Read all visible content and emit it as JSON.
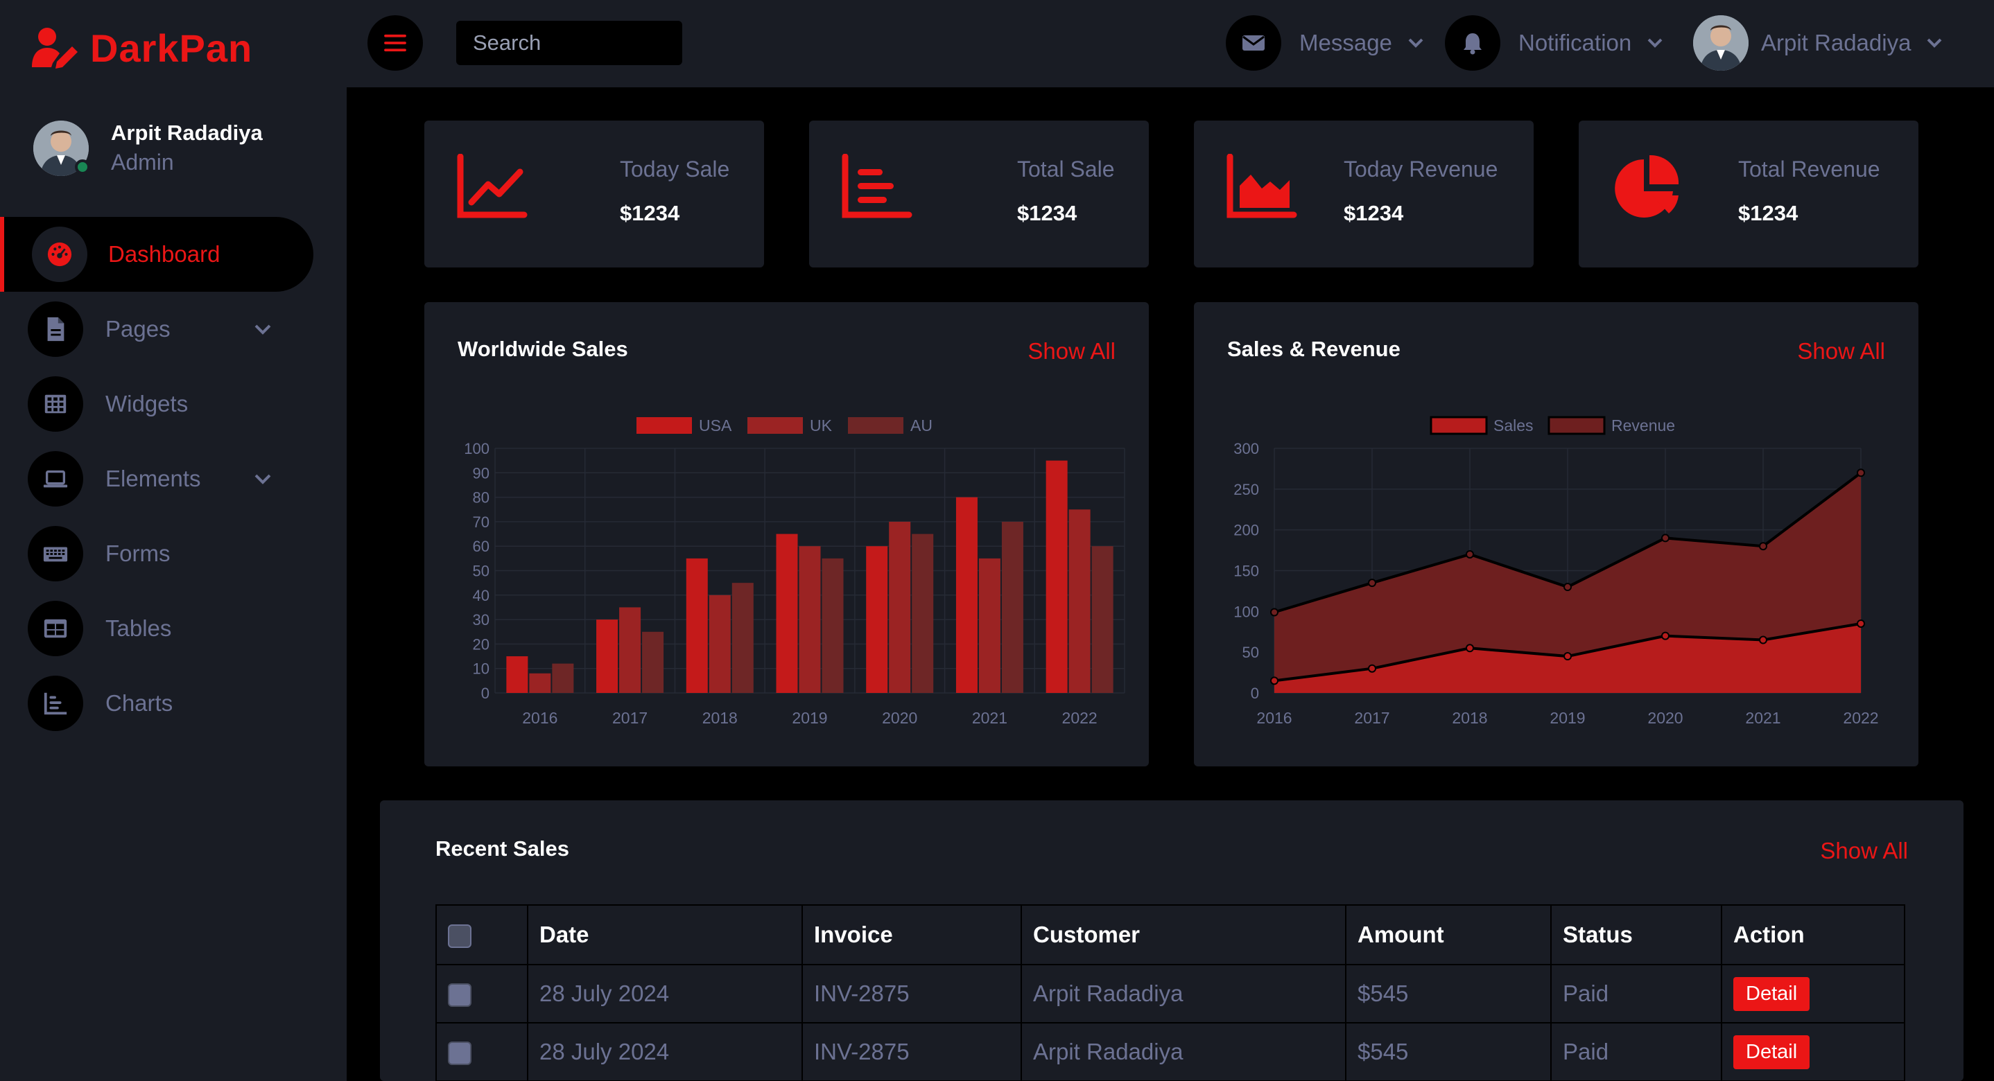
{
  "brand": {
    "name": "DarkPan",
    "accent": "#EB1616"
  },
  "profile": {
    "name": "Arpit Radadiya",
    "role": "Admin"
  },
  "sidebar": {
    "items": [
      {
        "label": "Dashboard",
        "icon": "tachometer-icon",
        "active": true
      },
      {
        "label": "Pages",
        "icon": "file-icon",
        "has_submenu": true
      },
      {
        "label": "Widgets",
        "icon": "grid-icon"
      },
      {
        "label": "Elements",
        "icon": "laptop-icon",
        "has_submenu": true
      },
      {
        "label": "Forms",
        "icon": "keyboard-icon"
      },
      {
        "label": "Tables",
        "icon": "table-icon"
      },
      {
        "label": "Charts",
        "icon": "chart-bar-icon"
      }
    ]
  },
  "topbar": {
    "search_placeholder": "Search",
    "message_label": "Message",
    "notification_label": "Notification",
    "user_name": "Arpit Radadiya"
  },
  "stats": [
    {
      "title": "Today Sale",
      "value": "$1234",
      "icon": "chart-line-icon"
    },
    {
      "title": "Total Sale",
      "value": "$1234",
      "icon": "chart-bar-icon"
    },
    {
      "title": "Today Revenue",
      "value": "$1234",
      "icon": "chart-area-icon"
    },
    {
      "title": "Total Revenue",
      "value": "$1234",
      "icon": "chart-pie-icon"
    }
  ],
  "worldwide": {
    "title": "Worldwide Sales",
    "show_all": "Show All"
  },
  "salesrev": {
    "title": "Sales & Revenue",
    "show_all": "Show All"
  },
  "chart_data": [
    {
      "type": "bar",
      "title": "Worldwide Sales",
      "categories": [
        "2016",
        "2017",
        "2018",
        "2019",
        "2020",
        "2021",
        "2022"
      ],
      "series": [
        {
          "name": "USA",
          "values": [
            15,
            30,
            55,
            65,
            60,
            80,
            95
          ],
          "color": "#C41A1A"
        },
        {
          "name": "UK",
          "values": [
            8,
            35,
            40,
            60,
            70,
            55,
            75
          ],
          "color": "#9B2323"
        },
        {
          "name": "AU",
          "values": [
            12,
            25,
            45,
            55,
            65,
            70,
            60
          ],
          "color": "#6E2626"
        }
      ],
      "ylim": [
        0,
        100
      ],
      "yticks": [
        "0",
        "10",
        "20",
        "30",
        "40",
        "50",
        "60",
        "70",
        "80",
        "90",
        "100"
      ],
      "legend": "top"
    },
    {
      "type": "area",
      "title": "Sales & Revenue",
      "x": [
        "2016",
        "2017",
        "2018",
        "2019",
        "2020",
        "2021",
        "2022"
      ],
      "series": [
        {
          "name": "Sales",
          "values": [
            15,
            30,
            55,
            45,
            70,
            65,
            85
          ],
          "color": "#B71C1C"
        },
        {
          "name": "Revenue",
          "values": [
            99,
            135,
            170,
            130,
            190,
            180,
            270
          ],
          "color": "#6E1F1F"
        }
      ],
      "ylim": [
        0,
        300
      ],
      "yticks": [
        "0",
        "50",
        "100",
        "150",
        "200",
        "250",
        "300"
      ],
      "legend": "top"
    }
  ],
  "recent_sales": {
    "title": "Recent Sales",
    "show_all": "Show All",
    "columns": [
      "Date",
      "Invoice",
      "Customer",
      "Amount",
      "Status",
      "Action"
    ],
    "rows": [
      {
        "date": "28 July 2024",
        "invoice": "INV-2875",
        "customer": "Arpit Radadiya",
        "amount": "$545",
        "status": "Paid",
        "action": "Detail"
      },
      {
        "date": "28 July 2024",
        "invoice": "INV-2875",
        "customer": "Arpit Radadiya",
        "amount": "$545",
        "status": "Paid",
        "action": "Detail"
      }
    ]
  }
}
